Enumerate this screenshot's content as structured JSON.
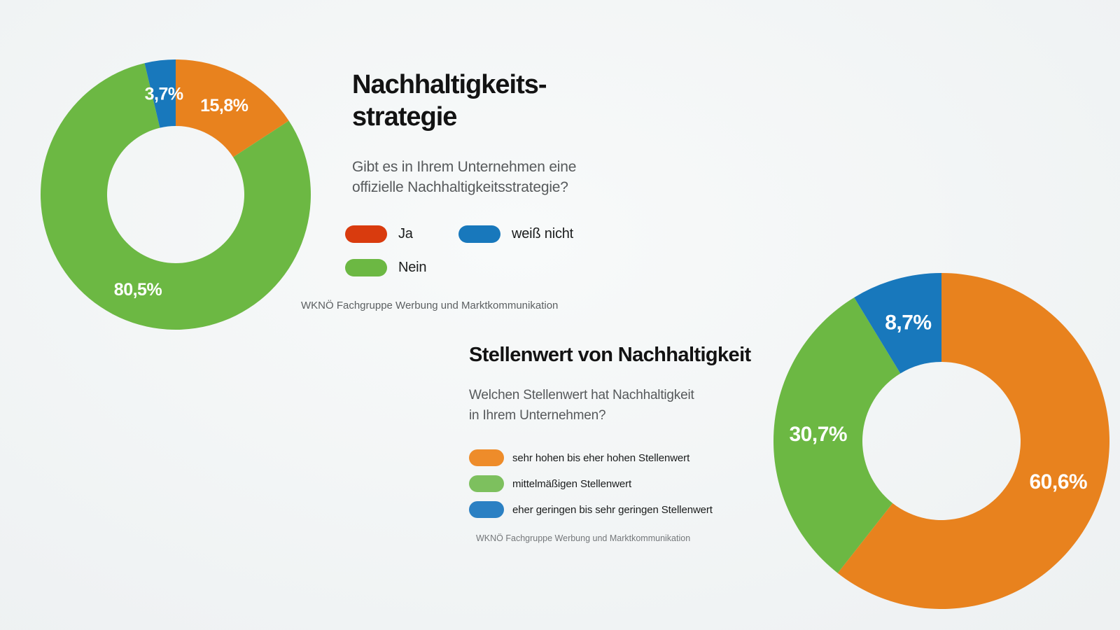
{
  "page": {
    "background_center": "#f8fafa",
    "background_edge": "#e9edef"
  },
  "chart_data": [
    {
      "type": "donut",
      "title_lines": [
        "Nachhaltigkeits-",
        "strategie"
      ],
      "subtitle_lines": [
        "Gibt es in Ihrem Unternehmen eine",
        "offizielle Nachhaltigkeitsstrategie?"
      ],
      "source": "WKNÖ Fachgruppe Werbung und Marktkommunikation",
      "labels": [
        "Ja",
        "Nein",
        "weiß nicht"
      ],
      "values": [
        15.8,
        80.5,
        3.7
      ],
      "value_labels": [
        "15,8%",
        "80,5%",
        "3,7%"
      ],
      "colors": [
        "#e8821e",
        "#6cb843",
        "#1878bc"
      ],
      "label_color": "#ffffff",
      "start_angle_deg": 0,
      "direction": "clockwise",
      "inner_radius_ratio": 0.51,
      "legend": [
        {
          "label": "Ja",
          "swatch_color": "#d93b0e"
        },
        {
          "label": "Nein",
          "swatch_color": "#6cb843"
        },
        {
          "label": "weiß nicht",
          "swatch_color": "#1878bc"
        }
      ]
    },
    {
      "type": "donut",
      "title_lines": [
        "Stellenwert von Nachhaltigkeit"
      ],
      "subtitle_lines": [
        "Welchen Stellenwert hat Nachhaltigkeit",
        "in Ihrem Unternehmen?"
      ],
      "source": "WKNÖ Fachgruppe Werbung und Marktkommunikation",
      "labels": [
        "sehr hohen bis eher hohen Stellenwert",
        "mittelmäßigen Stellenwert",
        "eher geringen bis sehr geringen Stellenwert"
      ],
      "values": [
        60.6,
        30.7,
        8.7
      ],
      "value_labels": [
        "60,6%",
        "30,7%",
        "8,7%"
      ],
      "colors": [
        "#e8821e",
        "#6cb843",
        "#1878bc"
      ],
      "label_color": "#ffffff",
      "start_angle_deg": 0,
      "direction": "clockwise",
      "inner_radius_ratio": 0.47,
      "legend": [
        {
          "label": "sehr hohen bis eher hohen Stellenwert",
          "swatch_color": "#ee8c2a"
        },
        {
          "label": "mittelmäßigen Stellenwert",
          "swatch_color": "#7dc05e"
        },
        {
          "label": "eher geringen bis sehr geringen Stellenwert",
          "swatch_color": "#2b80c3"
        }
      ]
    }
  ]
}
